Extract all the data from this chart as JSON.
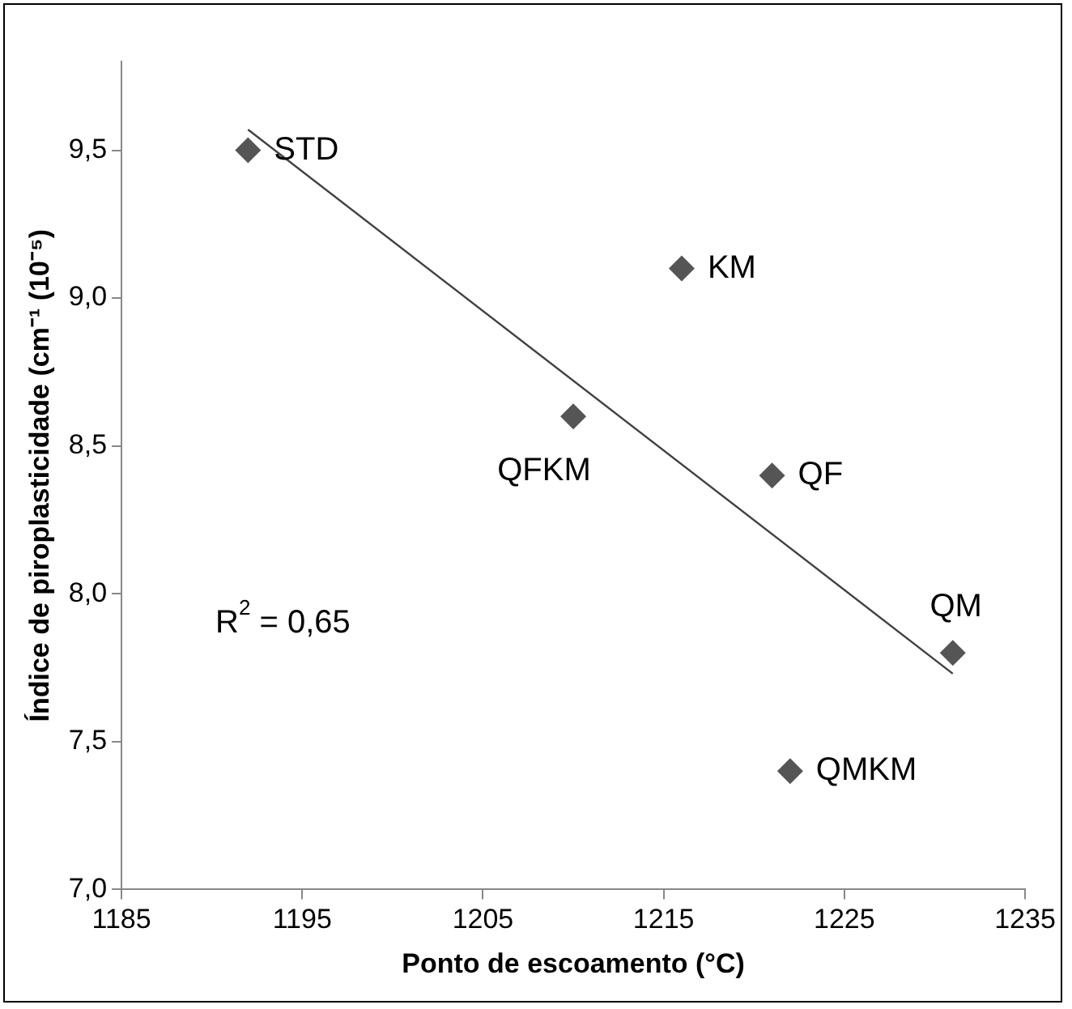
{
  "chart_data": {
    "type": "scatter",
    "xlabel": "Ponto de escoamento (°C)",
    "ylabel": "Índice de piroplasticidade (cm⁻¹ (10⁻⁵)",
    "series": [
      {
        "type": "scatter",
        "color": "#555555",
        "marker": "diamond",
        "x": [
          1192,
          1210,
          1216,
          1221,
          1222,
          1231
        ],
        "values": [
          9.5,
          8.6,
          9.1,
          8.4,
          7.4,
          7.8
        ]
      },
      {
        "type": "line",
        "color": "#404040",
        "marker": "none",
        "x": [
          1192,
          1231
        ],
        "values": [
          9.57,
          7.73
        ]
      }
    ],
    "xlim": [
      1185,
      1235
    ],
    "xticks": [
      1185,
      1195,
      1205,
      1215,
      1225,
      1235
    ],
    "ylim": [
      7,
      9.8
    ],
    "yticks": [
      {
        "value": 7,
        "label": "7,0"
      },
      {
        "value": 7.5,
        "label": "7,5"
      },
      {
        "value": 8,
        "label": "8,0"
      },
      {
        "value": 8.5,
        "label": "8,5"
      },
      {
        "value": 9,
        "label": "9,0"
      },
      {
        "value": 9.5,
        "label": "9,5"
      }
    ],
    "grid": false,
    "legend": false,
    "annotations": [
      {
        "text": "STD",
        "x": 1192,
        "y": 9.5
      },
      {
        "text": "QFKM",
        "x": 1210,
        "y": 8.6
      },
      {
        "text": "KM",
        "x": 1216,
        "y": 9.1
      },
      {
        "text": "QF",
        "x": 1221,
        "y": 8.4
      },
      {
        "text": "QMKM",
        "x": 1222,
        "y": 7.4
      },
      {
        "text": "QM",
        "x": 1231,
        "y": 7.8
      },
      "R$^{2}$ = 0,65"
    ]
  }
}
